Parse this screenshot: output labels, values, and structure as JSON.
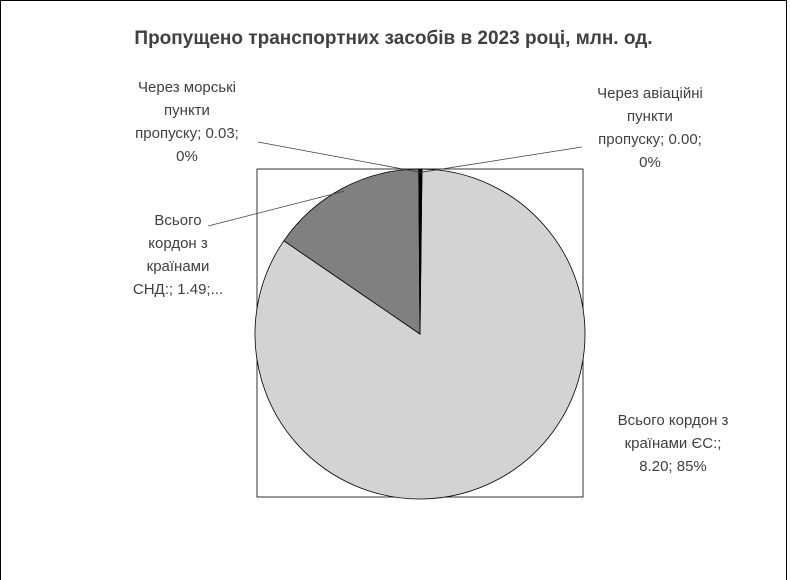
{
  "chart_data": {
    "type": "pie",
    "title": "Пропущено транспортних засобів в 2023 році, млн. од.",
    "slices": [
      {
        "name": "Через авіаційні пункти пропуску",
        "value": 0.0,
        "percent": "0%",
        "label_lines": [
          "Через авіаційні",
          "пункти",
          "пропуску; 0.00;",
          "0%"
        ],
        "color": "#000000"
      },
      {
        "name": "Всього кордон з країнами ЄС:",
        "value": 8.2,
        "percent": "85%",
        "label_lines": [
          "Всього кордон з",
          "країнами ЄС:;",
          "8.20; 85%"
        ],
        "color": "#d3d3d3"
      },
      {
        "name": "Всього кордон з країнами СНД:",
        "value": 1.49,
        "percent": "",
        "label_lines": [
          "Всього",
          "кордон з",
          "країнами",
          "СНД:; 1.49;..."
        ],
        "color": "#808080"
      },
      {
        "name": "Через морські пункти пропуску",
        "value": 0.03,
        "percent": "0%",
        "label_lines": [
          "Через морські",
          "пункти",
          "пропуску; 0.03;",
          "0%"
        ],
        "color": "#000000"
      }
    ],
    "legend": "none"
  }
}
